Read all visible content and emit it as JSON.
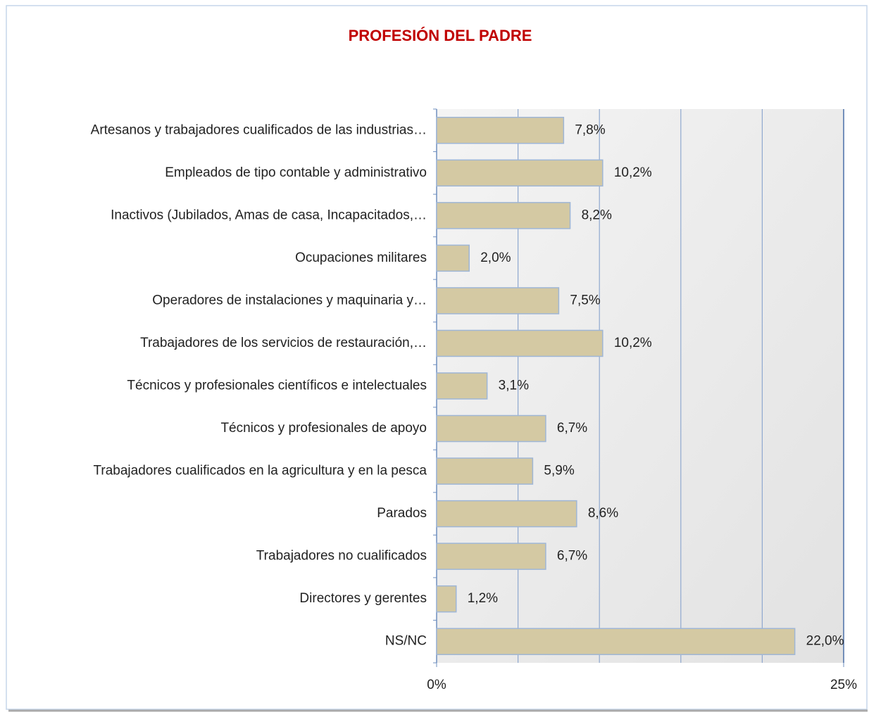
{
  "chart_data": {
    "type": "barh",
    "title": "PROFESIÓN DEL PADRE",
    "categories": [
      "Artesanos y trabajadores cualificados de las industrias…",
      "Empleados de tipo contable y administrativo",
      "Inactivos (Jubilados, Amas de casa, Incapacitados,…",
      "Ocupaciones militares",
      "Operadores de instalaciones y maquinaria y…",
      "Trabajadores de los servicios de restauración,…",
      "Técnicos y profesionales científicos e intelectuales",
      "Técnicos y profesionales de apoyo",
      "Trabajadores cualificados en la agricultura y en la pesca",
      "Parados",
      "Trabajadores no cualificados",
      "Directores y gerentes",
      "NS/NC"
    ],
    "values": [
      7.8,
      10.2,
      8.2,
      2.0,
      7.5,
      10.2,
      3.1,
      6.7,
      5.9,
      8.6,
      6.7,
      1.2,
      22.0
    ],
    "value_labels": [
      "7,8%",
      "10,2%",
      "8,2%",
      "2,0%",
      "7,5%",
      "10,2%",
      "3,1%",
      "6,7%",
      "5,9%",
      "8,6%",
      "6,7%",
      "1,2%",
      "22,0%"
    ],
    "color": "#d4c9a3",
    "xlim": [
      0,
      25
    ],
    "xticks": [
      {
        "value": 0,
        "label": "0%"
      },
      {
        "value": 25,
        "label": "25%"
      }
    ],
    "grid": [
      5,
      10,
      15,
      20
    ]
  }
}
